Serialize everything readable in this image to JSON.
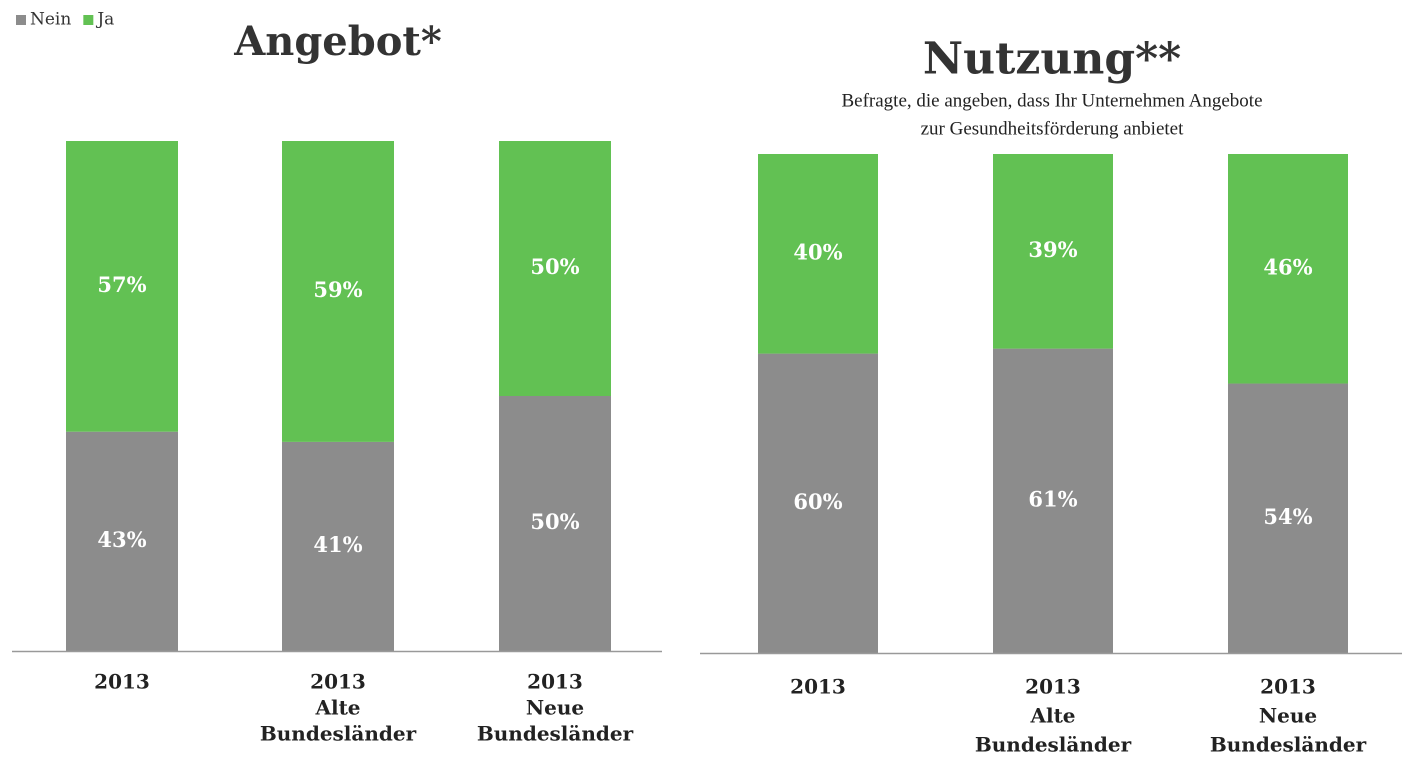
{
  "chart_data": [
    {
      "type": "stacked_bar",
      "title": "Angebot*",
      "categories": [
        [
          "2013"
        ],
        [
          "2013",
          "Alte",
          "Bundesländer"
        ],
        [
          "2013",
          "Neue",
          "Bundesländer"
        ]
      ],
      "series": [
        {
          "name": "Nein",
          "color": "#8c8c8c",
          "values": [
            43,
            41,
            50
          ],
          "value_labels": [
            "43%",
            "41%",
            "50%"
          ]
        },
        {
          "name": "Ja",
          "color": "#62c153",
          "values": [
            57,
            59,
            50
          ],
          "value_labels": [
            "57%",
            "59%",
            "50%"
          ]
        }
      ],
      "ylim": [
        0,
        100
      ],
      "legend": "top-left"
    },
    {
      "type": "stacked_bar",
      "title": "Nutzung**",
      "subtitle": [
        "Befragte, die angeben, dass Ihr Unternehmen Angebote",
        "zur Gesundheitsförderung anbietet"
      ],
      "categories": [
        [
          "2013"
        ],
        [
          "2013",
          "Alte",
          "Bundesländer"
        ],
        [
          "2013",
          "Neue",
          "Bundesländer"
        ]
      ],
      "series": [
        {
          "color": "#8c8c8c",
          "values": [
            60,
            61,
            54
          ],
          "value_labels": [
            "60%",
            "61%",
            "54%"
          ]
        },
        {
          "color": "#62c153",
          "values": [
            40,
            39,
            46
          ],
          "value_labels": [
            "40%",
            "39%",
            "46%"
          ]
        }
      ],
      "ylim": [
        0,
        100
      ]
    }
  ]
}
